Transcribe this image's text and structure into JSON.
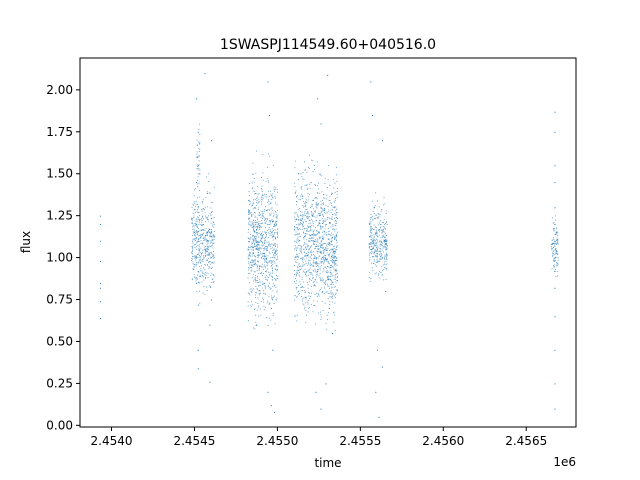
{
  "chart_data": {
    "type": "scatter",
    "title": "1SWASPJ114549.60+040516.0",
    "xlabel": "time",
    "ylabel": "flux",
    "x_offset_label": "1e6",
    "xlim": [
      2.45381,
      2.4568
    ],
    "ylim": [
      -0.01,
      2.19
    ],
    "xticks": [
      2.454,
      2.4545,
      2.455,
      2.4555,
      2.456,
      2.4565
    ],
    "xtick_labels": [
      "2.4540",
      "2.4545",
      "2.4550",
      "2.4555",
      "2.4560",
      "2.4565"
    ],
    "yticks": [
      0.0,
      0.25,
      0.5,
      0.75,
      1.0,
      1.25,
      1.5,
      1.75,
      2.0
    ],
    "ytick_labels": [
      "0.00",
      "0.25",
      "0.50",
      "0.75",
      "1.00",
      "1.25",
      "1.50",
      "1.75",
      "2.00"
    ],
    "grid": false,
    "marker_color": "#1f77b4",
    "series": [
      {
        "points": [
          [
            2.45393,
            1.25
          ],
          [
            2.45393,
            1.2
          ],
          [
            2.45393,
            1.1
          ],
          [
            2.45393,
            0.98
          ],
          [
            2.45393,
            0.85
          ],
          [
            2.45393,
            0.82
          ],
          [
            2.45393,
            0.74
          ],
          [
            2.45393,
            0.64
          ],
          [
            2.45451,
            1.95
          ],
          [
            2.45452,
            1.75
          ],
          [
            2.45452,
            1.55
          ],
          [
            2.45451,
            1.45
          ],
          [
            2.45452,
            1.3
          ],
          [
            2.45451,
            1.2
          ],
          [
            2.45452,
            1.1
          ],
          [
            2.45451,
            1.0
          ],
          [
            2.45452,
            0.92
          ],
          [
            2.45451,
            0.85
          ],
          [
            2.45452,
            0.72
          ],
          [
            2.45452,
            0.45
          ],
          [
            2.45452,
            0.34
          ],
          [
            2.45455,
            1.2
          ],
          [
            2.45456,
            1.12
          ],
          [
            2.45458,
            1.05
          ],
          [
            2.45459,
            0.98
          ],
          [
            2.4546,
            1.15
          ],
          [
            2.45461,
            0.9
          ],
          [
            2.4546,
            0.75
          ],
          [
            2.45459,
            0.6
          ],
          [
            2.45459,
            0.26
          ],
          [
            2.45456,
            2.1
          ],
          [
            2.4546,
            1.7
          ],
          [
            2.45485,
            1.5
          ],
          [
            2.45486,
            1.3
          ],
          [
            2.45487,
            1.15
          ],
          [
            2.45488,
            1.05
          ],
          [
            2.45489,
            0.95
          ],
          [
            2.4549,
            1.1
          ],
          [
            2.45491,
            1.25
          ],
          [
            2.45492,
            0.85
          ],
          [
            2.45493,
            1.0
          ],
          [
            2.45494,
            1.2
          ],
          [
            2.45495,
            0.9
          ],
          [
            2.45496,
            0.7
          ],
          [
            2.45497,
            0.45
          ],
          [
            2.45494,
            2.05
          ],
          [
            2.45495,
            1.85
          ],
          [
            2.45494,
            0.2
          ],
          [
            2.45496,
            0.12
          ],
          [
            2.45498,
            0.08
          ],
          [
            2.45487,
            0.6
          ],
          [
            2.4552,
            1.45
          ],
          [
            2.45521,
            1.25
          ],
          [
            2.45522,
            1.1
          ],
          [
            2.45523,
            1.0
          ],
          [
            2.45524,
            0.92
          ],
          [
            2.45525,
            1.15
          ],
          [
            2.45526,
            1.3
          ],
          [
            2.45527,
            0.8
          ],
          [
            2.45528,
            1.05
          ],
          [
            2.45529,
            1.2
          ],
          [
            2.4553,
            0.95
          ],
          [
            2.45531,
            0.7
          ],
          [
            2.45532,
            1.1
          ],
          [
            2.45533,
            0.55
          ],
          [
            2.45524,
            1.95
          ],
          [
            2.45526,
            1.8
          ],
          [
            2.4553,
            2.09
          ],
          [
            2.45523,
            0.2
          ],
          [
            2.45526,
            0.1
          ],
          [
            2.45529,
            0.25
          ],
          [
            2.45557,
            1.85
          ],
          [
            2.45558,
            1.3
          ],
          [
            2.45559,
            1.15
          ],
          [
            2.4556,
            1.05
          ],
          [
            2.45561,
            0.98
          ],
          [
            2.45562,
            1.2
          ],
          [
            2.45563,
            0.9
          ],
          [
            2.45564,
            1.1
          ],
          [
            2.45565,
            0.8
          ],
          [
            2.4556,
            0.45
          ],
          [
            2.45563,
            0.35
          ],
          [
            2.45559,
            0.2
          ],
          [
            2.45561,
            0.05
          ],
          [
            2.45563,
            1.7
          ],
          [
            2.45556,
            2.05
          ],
          [
            2.45667,
            1.87
          ],
          [
            2.45667,
            1.75
          ],
          [
            2.45667,
            1.55
          ],
          [
            2.45667,
            1.45
          ],
          [
            2.45667,
            1.3
          ],
          [
            2.45667,
            1.2
          ],
          [
            2.45667,
            1.1
          ],
          [
            2.45667,
            1.0
          ],
          [
            2.45667,
            0.92
          ],
          [
            2.45667,
            0.82
          ],
          [
            2.45667,
            0.65
          ],
          [
            2.45667,
            0.45
          ],
          [
            2.45667,
            0.25
          ],
          [
            2.45667,
            0.1
          ]
        ],
        "clusters": [
          {
            "x_min": 2.4551,
            "x_max": 2.45536,
            "center": 1.08,
            "spread": 0.2,
            "count": 1100
          },
          {
            "x_min": 2.45482,
            "x_max": 2.455,
            "center": 1.08,
            "spread": 0.19,
            "count": 800
          },
          {
            "x_min": 2.45448,
            "x_max": 2.45462,
            "center": 1.1,
            "spread": 0.14,
            "count": 450
          },
          {
            "x_min": 2.45555,
            "x_max": 2.45566,
            "center": 1.09,
            "spread": 0.1,
            "count": 320
          },
          {
            "x_min": 2.45665,
            "x_max": 2.45669,
            "center": 1.08,
            "spread": 0.08,
            "count": 110
          },
          {
            "x_min": 2.45451,
            "x_max": 2.45453,
            "center": 1.55,
            "spread": 0.12,
            "count": 40
          }
        ]
      }
    ]
  }
}
